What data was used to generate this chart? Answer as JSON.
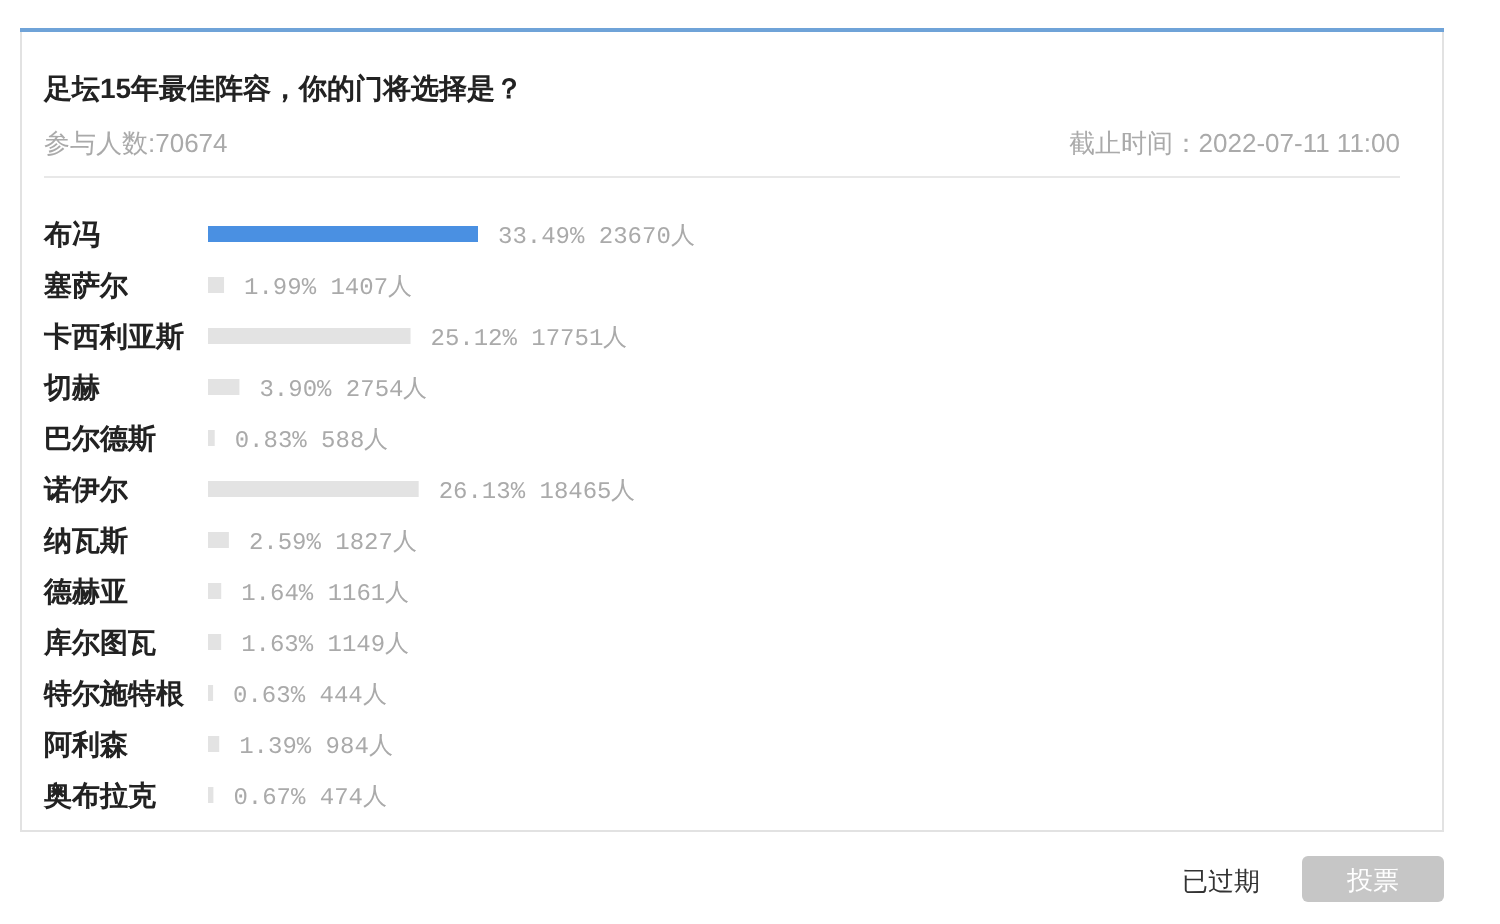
{
  "chart_data": {
    "type": "bar",
    "orientation": "horizontal",
    "title": "足坛15年最佳阵容，你的门将选择是？",
    "subtitle": "参与人数:70674",
    "annotations": [
      "截止时间：2022-07-11 11:00",
      "已过期",
      "投票"
    ],
    "categories": [
      "布冯",
      "塞萨尔",
      "卡西利亚斯",
      "切赫",
      "巴尔德斯",
      "诺伊尔",
      "纳瓦斯",
      "德赫亚",
      "库尔图瓦",
      "特尔施特根",
      "阿利森",
      "奥布拉克"
    ],
    "values": [
      33.49,
      1.99,
      25.12,
      3.9,
      0.83,
      26.13,
      2.59,
      1.64,
      1.63,
      0.63,
      1.39,
      0.67
    ],
    "value_labels": [
      "33.49% 23670人",
      "1.99% 1407人",
      "25.12% 17751人",
      "3.90% 2754人",
      "0.83% 588人",
      "26.13% 18465人",
      "2.59% 1827人",
      "1.64% 1161人",
      "1.63% 1149人",
      "0.63% 444人",
      "1.39% 984人",
      "0.67% 474人"
    ],
    "colors": [
      "#4a90e2",
      "#e3e3e3",
      "#e3e3e3",
      "#e3e3e3",
      "#e3e3e3",
      "#e3e3e3",
      "#e3e3e3",
      "#e3e3e3",
      "#e3e3e3",
      "#e3e3e3",
      "#e3e3e3",
      "#e3e3e3"
    ]
  }
}
